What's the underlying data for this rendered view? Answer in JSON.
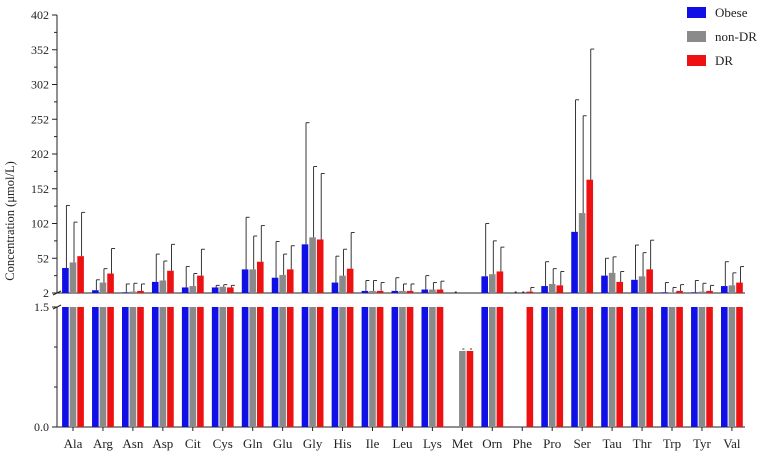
{
  "chart_data": {
    "type": "bar",
    "ylabel": "Concentration (μmol/L)",
    "upper_panel": {
      "ylim": [
        2,
        402
      ],
      "ticks": [
        "402",
        "352",
        "302",
        "252",
        "202",
        "152",
        "102",
        "52",
        "2"
      ],
      "tick_values": [
        402,
        352,
        302,
        252,
        202,
        152,
        102,
        52,
        2
      ]
    },
    "lower_panel": {
      "ylim": [
        0,
        1.5
      ],
      "ticks": [
        "1.5",
        "0.0"
      ],
      "tick_values": [
        1.5,
        0
      ]
    },
    "legend_position": "top-right",
    "categories": [
      "Ala",
      "Arg",
      "Asn",
      "Asp",
      "Cit",
      "Cys",
      "Gln",
      "Glu",
      "Gly",
      "His",
      "Ile",
      "Leu",
      "Lys",
      "Met",
      "Orn",
      "Phe",
      "Pro",
      "Ser",
      "Tau",
      "Thr",
      "Trp",
      "Tyr",
      "Val"
    ],
    "series": [
      {
        "name": "Obese",
        "color": "#1010e6",
        "values": [
          38,
          6,
          3,
          18,
          10,
          10,
          36,
          24,
          72,
          17,
          5,
          5,
          7,
          0.001,
          26,
          0.001,
          12,
          90,
          27,
          21,
          3,
          3,
          12
        ],
        "errors": [
          90,
          15,
          12,
          40,
          30,
          3,
          75,
          52,
          175,
          38,
          15,
          19,
          20,
          0,
          76,
          0,
          35,
          190,
          25,
          50,
          14,
          17,
          35
        ]
      },
      {
        "name": "non-DR",
        "color": "#8a8a8a",
        "values": [
          46,
          17,
          4,
          20,
          12,
          11,
          36,
          28,
          82,
          27,
          5,
          5,
          7,
          0.95,
          29,
          0.001,
          15,
          117,
          31,
          26,
          3,
          4,
          13
        ],
        "errors": [
          58,
          20,
          12,
          28,
          18,
          3,
          48,
          30,
          102,
          38,
          15,
          10,
          10,
          0,
          48,
          0,
          22,
          140,
          23,
          34,
          7,
          12,
          18
        ]
      },
      {
        "name": "DR",
        "color": "#ee1111",
        "values": [
          55,
          30,
          5,
          34,
          27,
          10,
          47,
          36,
          79,
          37,
          5,
          5,
          7,
          0.95,
          33,
          4,
          13,
          165,
          18,
          36,
          5,
          5,
          17
        ],
        "errors": [
          63,
          36,
          10,
          38,
          38,
          3,
          52,
          34,
          95,
          52,
          12,
          10,
          12,
          0,
          35,
          6,
          20,
          188,
          15,
          42,
          9,
          8,
          23
        ]
      }
    ]
  }
}
